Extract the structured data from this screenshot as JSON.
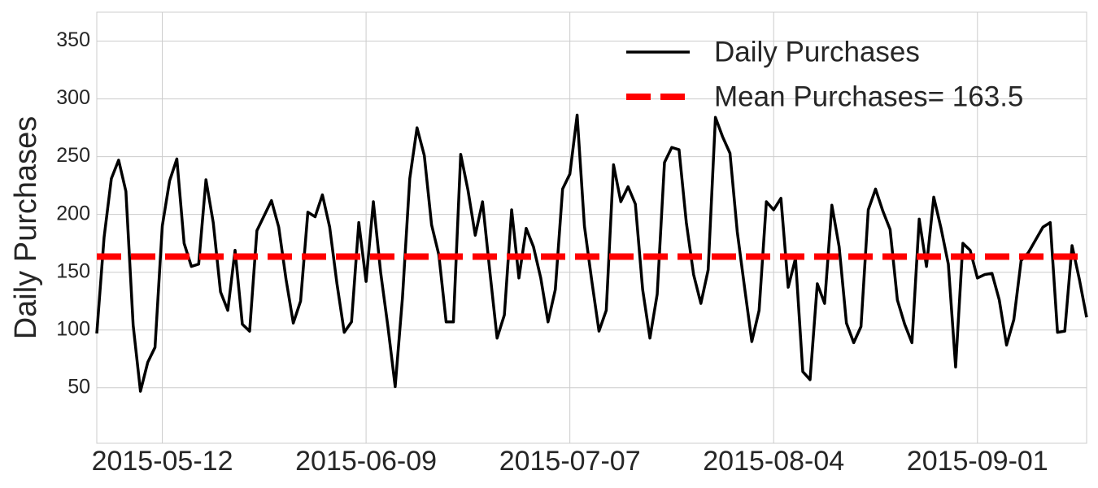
{
  "chart_data": {
    "type": "line",
    "y_label": "Daily Purchases",
    "x": [
      "2015-05-03",
      "2015-05-04",
      "2015-05-05",
      "2015-05-06",
      "2015-05-07",
      "2015-05-08",
      "2015-05-09",
      "2015-05-10",
      "2015-05-11",
      "2015-05-12",
      "2015-05-13",
      "2015-05-14",
      "2015-05-15",
      "2015-05-16",
      "2015-05-17",
      "2015-05-18",
      "2015-05-19",
      "2015-05-20",
      "2015-05-21",
      "2015-05-22",
      "2015-05-23",
      "2015-05-24",
      "2015-05-25",
      "2015-05-26",
      "2015-05-27",
      "2015-05-28",
      "2015-05-29",
      "2015-05-30",
      "2015-05-31",
      "2015-06-01",
      "2015-06-02",
      "2015-06-03",
      "2015-06-04",
      "2015-06-05",
      "2015-06-06",
      "2015-06-07",
      "2015-06-08",
      "2015-06-09",
      "2015-06-10",
      "2015-06-11",
      "2015-06-12",
      "2015-06-13",
      "2015-06-14",
      "2015-06-15",
      "2015-06-16",
      "2015-06-17",
      "2015-06-18",
      "2015-06-19",
      "2015-06-20",
      "2015-06-21",
      "2015-06-22",
      "2015-06-23",
      "2015-06-24",
      "2015-06-25",
      "2015-06-26",
      "2015-06-27",
      "2015-06-28",
      "2015-06-29",
      "2015-06-30",
      "2015-07-01",
      "2015-07-02",
      "2015-07-03",
      "2015-07-04",
      "2015-07-05",
      "2015-07-06",
      "2015-07-07",
      "2015-07-08",
      "2015-07-09",
      "2015-07-10",
      "2015-07-11",
      "2015-07-12",
      "2015-07-13",
      "2015-07-14",
      "2015-07-15",
      "2015-07-16",
      "2015-07-17",
      "2015-07-18",
      "2015-07-19",
      "2015-07-20",
      "2015-07-21",
      "2015-07-22",
      "2015-07-23",
      "2015-07-24",
      "2015-07-25",
      "2015-07-26",
      "2015-07-27",
      "2015-07-28",
      "2015-07-29",
      "2015-07-30",
      "2015-07-31",
      "2015-08-01",
      "2015-08-02",
      "2015-08-03",
      "2015-08-04",
      "2015-08-05",
      "2015-08-06",
      "2015-08-07",
      "2015-08-08",
      "2015-08-09",
      "2015-08-10",
      "2015-08-11",
      "2015-08-12",
      "2015-08-13",
      "2015-08-14",
      "2015-08-15",
      "2015-08-16",
      "2015-08-17",
      "2015-08-18",
      "2015-08-19",
      "2015-08-20",
      "2015-08-21",
      "2015-08-22",
      "2015-08-23",
      "2015-08-24",
      "2015-08-25",
      "2015-08-26",
      "2015-08-27",
      "2015-08-28",
      "2015-08-29",
      "2015-08-30",
      "2015-08-31",
      "2015-09-01",
      "2015-09-02",
      "2015-09-03",
      "2015-09-04",
      "2015-09-05",
      "2015-09-06",
      "2015-09-07",
      "2015-09-08",
      "2015-09-09",
      "2015-09-10",
      "2015-09-11",
      "2015-09-12",
      "2015-09-13",
      "2015-09-14",
      "2015-09-15",
      "2015-09-16"
    ],
    "series": [
      {
        "name": "Daily Purchases",
        "color": "#000000",
        "values": [
          97,
          180,
          231,
          247,
          220,
          104,
          47,
          72,
          85,
          190,
          229,
          248,
          175,
          155,
          157,
          230,
          193,
          133,
          117,
          169,
          105,
          99,
          186,
          199,
          212,
          189,
          144,
          106,
          125,
          202,
          198,
          217,
          189,
          140,
          98,
          107,
          193,
          142,
          211,
          150,
          103,
          51,
          128,
          231,
          275,
          251,
          191,
          165,
          107,
          107,
          252,
          221,
          182,
          211,
          151,
          93,
          113,
          204,
          145,
          188,
          172,
          145,
          107,
          135,
          222,
          235,
          286,
          190,
          143,
          99,
          117,
          243,
          211,
          224,
          209,
          135,
          93,
          131,
          245,
          258,
          256,
          193,
          148,
          123,
          152,
          284,
          267,
          253,
          185,
          137,
          90,
          117,
          211,
          204,
          214,
          137,
          162,
          64,
          57,
          140,
          123,
          208,
          172,
          106,
          89,
          103,
          204,
          222,
          203,
          187,
          126,
          105,
          89,
          196,
          155,
          215,
          188,
          157,
          68,
          175,
          169,
          145,
          148,
          149,
          126,
          87,
          109,
          160,
          167,
          178,
          189,
          193,
          98,
          99,
          173,
          144,
          111
        ]
      }
    ],
    "reference_lines": [
      {
        "name": "Mean Purchases= 163.5",
        "value": 163.5,
        "color": "#ff0000",
        "style": "dashed"
      }
    ],
    "xlim": [
      "2015-05-03",
      "2015-09-16"
    ],
    "xticks": [
      "2015-05-12",
      "2015-06-09",
      "2015-07-07",
      "2015-08-04",
      "2015-09-01"
    ],
    "ylim": [
      2,
      375
    ],
    "yticks": [
      50,
      100,
      150,
      200,
      250,
      300,
      350
    ],
    "grid": true,
    "legend": "upper right"
  }
}
